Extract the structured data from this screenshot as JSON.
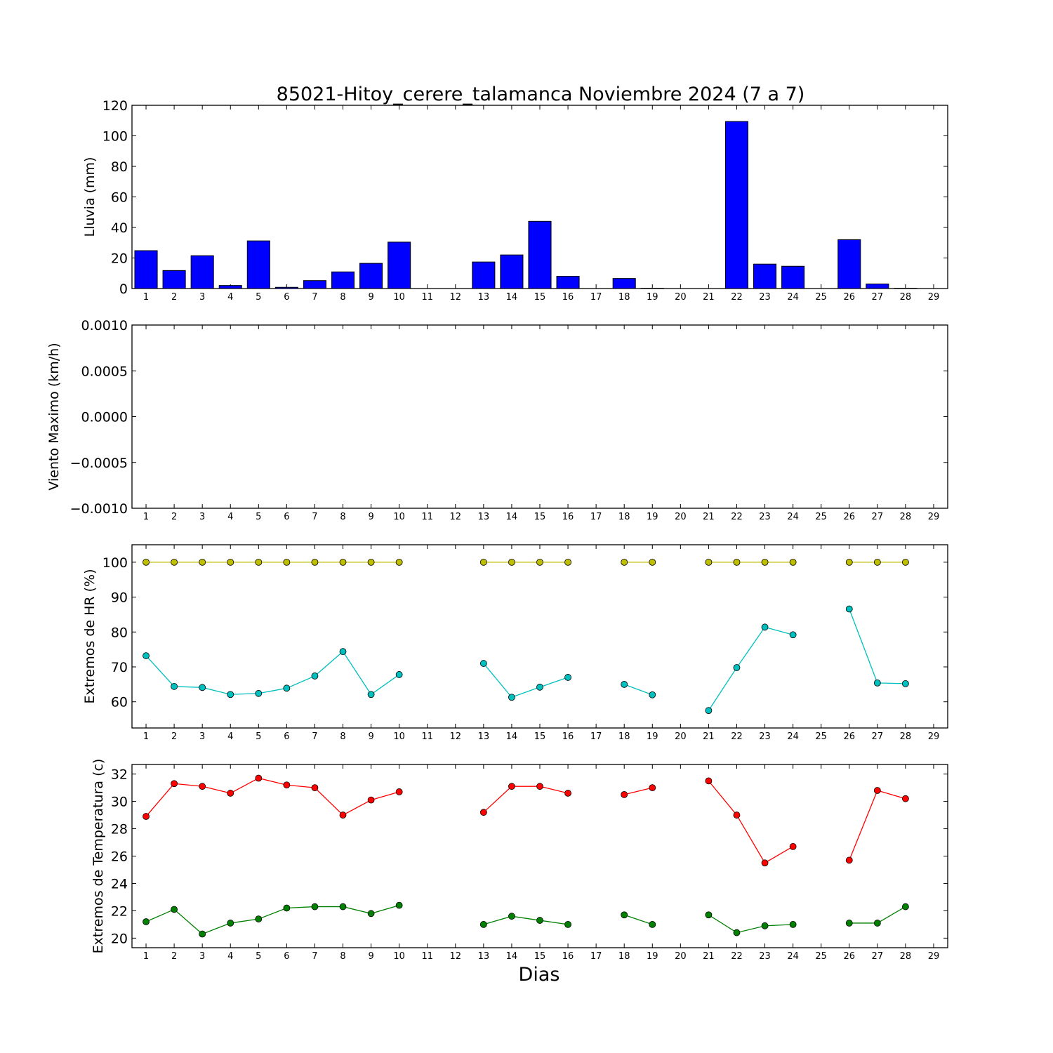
{
  "title": "85021-Hitoy_cerere_talamanca Noviembre 2024  (7 a 7)",
  "xlabel": "Dias",
  "colors": {
    "rain_bar": "#0000ff",
    "hr_max": "#bfbf00",
    "hr_min": "#00bfbf",
    "temp_max": "#ff0000",
    "temp_min": "#008000"
  },
  "chart_data": [
    {
      "type": "bar",
      "ylabel": "Lluvia (mm)",
      "ylim": [
        0,
        120
      ],
      "yticks": [
        "0",
        "20",
        "40",
        "60",
        "80",
        "100",
        "120"
      ],
      "ytick_values": [
        0,
        20,
        40,
        60,
        80,
        100,
        120
      ],
      "xlim": [
        0.5,
        29.5
      ],
      "xticks": [
        "1",
        "2",
        "3",
        "4",
        "5",
        "6",
        "7",
        "8",
        "9",
        "10",
        "11",
        "12",
        "13",
        "14",
        "15",
        "16",
        "17",
        "18",
        "19",
        "20",
        "21",
        "22",
        "23",
        "24",
        "25",
        "26",
        "27",
        "28",
        "29"
      ],
      "series": [
        {
          "days": [
            1,
            2,
            3,
            4,
            5,
            6,
            7,
            8,
            9,
            10,
            11,
            12,
            13,
            14,
            15,
            16,
            17,
            18,
            19,
            20,
            21,
            22,
            23,
            24,
            25,
            26,
            27,
            28
          ],
          "values": [
            24.8,
            11.8,
            21.5,
            2.0,
            31.2,
            0.8,
            5.2,
            10.9,
            16.5,
            30.4,
            0,
            0,
            17.4,
            22.0,
            44.0,
            8.0,
            0,
            6.6,
            0.2,
            0,
            0,
            109.4,
            16.0,
            14.6,
            0,
            32.0,
            3.0,
            0.2
          ]
        }
      ]
    },
    {
      "type": "line",
      "ylabel": "Viento Maximo (km/h)",
      "ylim": [
        -0.001,
        0.001
      ],
      "yticks": [
        "−0.0010",
        "−0.0005",
        "0.0000",
        "0.0005",
        "0.0010"
      ],
      "ytick_values": [
        -0.001,
        -0.0005,
        0,
        0.0005,
        0.001
      ],
      "xlim": [
        0.5,
        29.5
      ],
      "xticks": [
        "1",
        "2",
        "3",
        "4",
        "5",
        "6",
        "7",
        "8",
        "9",
        "10",
        "11",
        "12",
        "13",
        "14",
        "15",
        "16",
        "17",
        "18",
        "19",
        "20",
        "21",
        "22",
        "23",
        "24",
        "25",
        "26",
        "27",
        "28",
        "29"
      ],
      "series": []
    },
    {
      "type": "line",
      "ylabel": "Extremos de HR (%)",
      "ylim": [
        52.5,
        105
      ],
      "yticks": [
        "60",
        "70",
        "80",
        "90",
        "100"
      ],
      "ytick_values": [
        60,
        70,
        80,
        90,
        100
      ],
      "xlim": [
        0.5,
        29.5
      ],
      "xticks": [
        "1",
        "2",
        "3",
        "4",
        "5",
        "6",
        "7",
        "8",
        "9",
        "10",
        "11",
        "12",
        "13",
        "14",
        "15",
        "16",
        "17",
        "18",
        "19",
        "20",
        "21",
        "22",
        "23",
        "24",
        "25",
        "26",
        "27",
        "28",
        "29"
      ],
      "series": [
        {
          "color_key": "hr_max",
          "segments": [
            {
              "x": [
                1,
                2,
                3,
                4,
                5,
                6,
                7,
                8,
                9,
                10
              ],
              "y": [
                100,
                100,
                100,
                100,
                100,
                100,
                100,
                100,
                100,
                100
              ]
            },
            {
              "x": [
                13,
                14,
                15,
                16
              ],
              "y": [
                100,
                100,
                100,
                100
              ]
            },
            {
              "x": [
                18,
                19
              ],
              "y": [
                100,
                100
              ]
            },
            {
              "x": [
                21,
                22,
                23,
                24
              ],
              "y": [
                100,
                100,
                100,
                100
              ]
            },
            {
              "x": [
                26,
                27,
                28
              ],
              "y": [
                100,
                100,
                100
              ]
            }
          ]
        },
        {
          "color_key": "hr_min",
          "segments": [
            {
              "x": [
                1,
                2,
                3,
                4,
                5,
                6,
                7,
                8,
                9,
                10
              ],
              "y": [
                73.2,
                64.4,
                64.1,
                62.1,
                62.4,
                63.9,
                67.4,
                74.4,
                62.1,
                67.8
              ]
            },
            {
              "x": [
                13,
                14,
                15,
                16
              ],
              "y": [
                71.0,
                61.3,
                64.2,
                67.0
              ]
            },
            {
              "x": [
                18,
                19
              ],
              "y": [
                65.0,
                62.0
              ]
            },
            {
              "x": [
                21,
                22,
                23,
                24
              ],
              "y": [
                57.5,
                69.8,
                81.4,
                79.2
              ]
            },
            {
              "x": [
                26,
                27,
                28
              ],
              "y": [
                86.6,
                65.4,
                65.2
              ]
            }
          ]
        }
      ]
    },
    {
      "type": "line",
      "ylabel": "Extremos de Temperatura (c)",
      "ylim": [
        19.3,
        32.7
      ],
      "yticks": [
        "20",
        "22",
        "24",
        "26",
        "28",
        "30",
        "32"
      ],
      "ytick_values": [
        20,
        22,
        24,
        26,
        28,
        30,
        32
      ],
      "xlim": [
        0.5,
        29.5
      ],
      "xticks": [
        "1",
        "2",
        "3",
        "4",
        "5",
        "6",
        "7",
        "8",
        "9",
        "10",
        "11",
        "12",
        "13",
        "14",
        "15",
        "16",
        "17",
        "18",
        "19",
        "20",
        "21",
        "22",
        "23",
        "24",
        "25",
        "26",
        "27",
        "28",
        "29"
      ],
      "series": [
        {
          "color_key": "temp_max",
          "segments": [
            {
              "x": [
                1,
                2,
                3,
                4,
                5,
                6,
                7,
                8,
                9,
                10
              ],
              "y": [
                28.9,
                31.3,
                31.1,
                30.6,
                31.7,
                31.2,
                31.0,
                29.0,
                30.1,
                30.7
              ]
            },
            {
              "x": [
                13,
                14,
                15,
                16
              ],
              "y": [
                29.2,
                31.1,
                31.1,
                30.6
              ]
            },
            {
              "x": [
                18,
                19
              ],
              "y": [
                30.5,
                31.0
              ]
            },
            {
              "x": [
                21,
                22,
                23,
                24
              ],
              "y": [
                31.5,
                29.0,
                25.5,
                26.7
              ]
            },
            {
              "x": [
                26,
                27,
                28
              ],
              "y": [
                25.7,
                30.8,
                30.2
              ]
            }
          ]
        },
        {
          "color_key": "temp_min",
          "segments": [
            {
              "x": [
                1,
                2,
                3,
                4,
                5,
                6,
                7,
                8,
                9,
                10
              ],
              "y": [
                21.2,
                22.1,
                20.3,
                21.1,
                21.4,
                22.2,
                22.3,
                22.3,
                21.8,
                22.4
              ]
            },
            {
              "x": [
                13,
                14,
                15,
                16
              ],
              "y": [
                21.0,
                21.6,
                21.3,
                21.0
              ]
            },
            {
              "x": [
                18,
                19
              ],
              "y": [
                21.7,
                21.0
              ]
            },
            {
              "x": [
                21,
                22,
                23,
                24
              ],
              "y": [
                21.7,
                20.4,
                20.9,
                21.0
              ]
            },
            {
              "x": [
                26,
                27,
                28
              ],
              "y": [
                21.1,
                21.1,
                22.3
              ]
            }
          ]
        }
      ]
    }
  ]
}
